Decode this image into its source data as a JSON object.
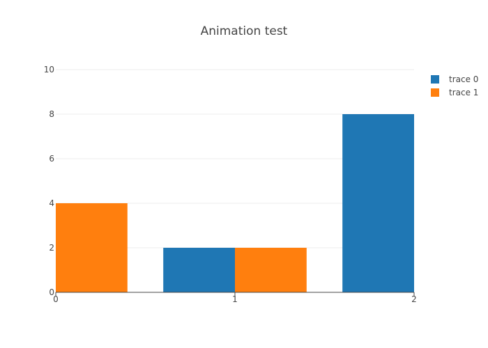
{
  "chart_data": {
    "type": "bar",
    "title": "Animation test",
    "x": [
      0,
      1,
      2
    ],
    "xlim": [
      0,
      2
    ],
    "ylim": [
      0,
      10
    ],
    "yticks": [
      0,
      2,
      4,
      6,
      8,
      10
    ],
    "xticks": [
      0,
      1,
      2
    ],
    "grid": true,
    "legend_position": "top-right",
    "series": [
      {
        "name": "trace 0",
        "color": "#1f77b4",
        "values": [
          null,
          2,
          8
        ]
      },
      {
        "name": "trace 1",
        "color": "#ff7f0e",
        "values": [
          4,
          2,
          null
        ]
      }
    ]
  }
}
